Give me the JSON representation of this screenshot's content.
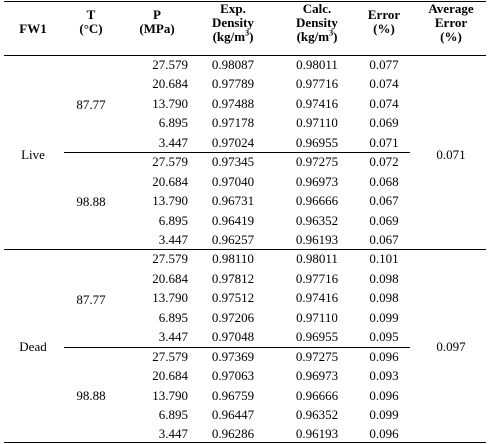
{
  "table": {
    "headers": {
      "fw1": "FW1",
      "t": [
        "T",
        "(°C)"
      ],
      "p": [
        "P",
        "(MPa)"
      ],
      "exp": [
        "Exp.",
        "Density",
        "(kg/m",
        "3",
        ")"
      ],
      "calc": [
        "Calc.",
        "Density",
        "(kg/m",
        "3",
        ")"
      ],
      "error": [
        "Error",
        "(%)"
      ],
      "avg": [
        "Average",
        "Error",
        "(%)"
      ]
    },
    "groups": [
      {
        "fw1": "Live",
        "average_error": "0.071",
        "blocks": [
          {
            "t": "87.77",
            "rows": [
              {
                "p": "27.579",
                "exp": "0.98087",
                "calc": "0.98011",
                "err": "0.077"
              },
              {
                "p": "20.684",
                "exp": "0.97789",
                "calc": "0.97716",
                "err": "0.074"
              },
              {
                "p": "13.790",
                "exp": "0.97488",
                "calc": "0.97416",
                "err": "0.074"
              },
              {
                "p": "6.895",
                "exp": "0.97178",
                "calc": "0.97110",
                "err": "0.069"
              },
              {
                "p": "3.447",
                "exp": "0.97024",
                "calc": "0.96955",
                "err": "0.071"
              }
            ]
          },
          {
            "t": "98.88",
            "rows": [
              {
                "p": "27.579",
                "exp": "0.97345",
                "calc": "0.97275",
                "err": "0.072"
              },
              {
                "p": "20.684",
                "exp": "0.97040",
                "calc": "0.96973",
                "err": "0.068"
              },
              {
                "p": "13.790",
                "exp": "0.96731",
                "calc": "0.96666",
                "err": "0.067"
              },
              {
                "p": "6.895",
                "exp": "0.96419",
                "calc": "0.96352",
                "err": "0.069"
              },
              {
                "p": "3.447",
                "exp": "0.96257",
                "calc": "0.96193",
                "err": "0.067"
              }
            ]
          }
        ]
      },
      {
        "fw1": "Dead",
        "average_error": "0.097",
        "blocks": [
          {
            "t": "87.77",
            "rows": [
              {
                "p": "27.579",
                "exp": "0.98110",
                "calc": "0.98011",
                "err": "0.101"
              },
              {
                "p": "20.684",
                "exp": "0.97812",
                "calc": "0.97716",
                "err": "0.098"
              },
              {
                "p": "13.790",
                "exp": "0.97512",
                "calc": "0.97416",
                "err": "0.098"
              },
              {
                "p": "6.895",
                "exp": "0.97206",
                "calc": "0.97110",
                "err": "0.099"
              },
              {
                "p": "3.447",
                "exp": "0.97048",
                "calc": "0.96955",
                "err": "0.095"
              }
            ]
          },
          {
            "t": "98.88",
            "rows": [
              {
                "p": "27.579",
                "exp": "0.97369",
                "calc": "0.97275",
                "err": "0.096"
              },
              {
                "p": "20.684",
                "exp": "0.97063",
                "calc": "0.96973",
                "err": "0.093"
              },
              {
                "p": "13.790",
                "exp": "0.96759",
                "calc": "0.96666",
                "err": "0.096"
              },
              {
                "p": "6.895",
                "exp": "0.96447",
                "calc": "0.96352",
                "err": "0.099"
              },
              {
                "p": "3.447",
                "exp": "0.96286",
                "calc": "0.96193",
                "err": "0.096"
              }
            ]
          }
        ]
      }
    ]
  }
}
